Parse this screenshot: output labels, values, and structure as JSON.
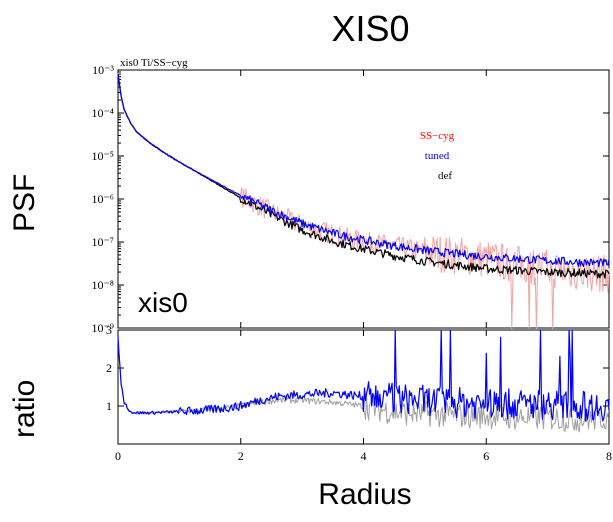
{
  "figure": {
    "title": "XIS0",
    "psf_ylabel": "PSF",
    "ratio_ylabel": "ratio",
    "xlabel": "Radius",
    "panel_title": "xis0 Ti/SS−cyg",
    "panel_annotation": "xis0"
  },
  "colors": {
    "sscyg": "#ff0000",
    "sscyg_line": "#f4a3a3",
    "tuned": "#0000ff",
    "def": "#000000",
    "def_ratio": "#a0a0a0"
  },
  "chart_data": [
    {
      "type": "line",
      "panel": "psf",
      "xlim": [
        0,
        8
      ],
      "ylim": [
        1e-09,
        0.001
      ],
      "yscale": "log",
      "xticks": [
        0,
        2,
        4,
        6,
        8
      ],
      "ytick_labels": [
        "10⁻⁹",
        "10⁻⁸",
        "10⁻⁷",
        "10⁻⁶",
        "10⁻⁵",
        "10⁻⁴",
        "10⁻³"
      ],
      "legend": [
        "SS−cyg",
        "tuned",
        "def"
      ],
      "legend_placement": "top-right",
      "series": [
        {
          "name": "def",
          "x": [
            0,
            0.05,
            0.1,
            0.2,
            0.3,
            0.5,
            0.75,
            1.0,
            1.5,
            2.0,
            2.5,
            3.0,
            3.5,
            4.0,
            4.5,
            5.0,
            5.5,
            6.0,
            6.5,
            7.0,
            7.5,
            8.0
          ],
          "y": [
            0.0008,
            0.00025,
            0.00012,
            6e-05,
            3.7e-05,
            2.1e-05,
            1.2e-05,
            7.2e-06,
            2.8e-06,
            1.05e-06,
            4.3e-07,
            1.9e-07,
            1.05e-07,
            6.8e-08,
            4.8e-08,
            3.6e-08,
            2.9e-08,
            2.4e-08,
            2.2e-08,
            2e-08,
            1.9e-08,
            1.8e-08
          ]
        },
        {
          "name": "tuned",
          "x": [
            0,
            0.05,
            0.1,
            0.2,
            0.3,
            0.5,
            0.75,
            1.0,
            1.5,
            2.0,
            2.5,
            3.0,
            3.5,
            4.0,
            4.5,
            5.0,
            5.5,
            6.0,
            6.5,
            7.0,
            7.5,
            8.0
          ],
          "y": [
            0.0008,
            0.00025,
            0.00012,
            6e-05,
            3.7e-05,
            2.1e-05,
            1.2e-05,
            7.2e-06,
            2.9e-06,
            1.2e-06,
            5.5e-07,
            2.7e-07,
            1.6e-07,
            1.1e-07,
            8.2e-08,
            6.4e-08,
            5.3e-08,
            4.6e-08,
            4.1e-08,
            3.7e-08,
            3.4e-08,
            3.2e-08
          ]
        },
        {
          "name": "SS−cyg",
          "x": [
            0,
            0.05,
            0.1,
            0.2,
            0.3,
            0.5,
            0.75,
            1.0,
            1.5,
            2.0,
            2.5,
            3.0,
            3.5,
            4.0,
            4.5,
            5.0,
            5.5,
            6.0,
            6.5,
            7.0,
            7.5,
            8.0
          ],
          "y": [
            0.0009,
            0.00026,
            0.00012,
            6e-05,
            3.7e-05,
            2.1e-05,
            1.2e-05,
            7.2e-06,
            2.9e-06,
            1.15e-06,
            5e-07,
            2.4e-07,
            1.5e-07,
            1e-07,
            8e-08,
            6e-08,
            5e-08,
            4e-08,
            3e-08,
            2.5e-08,
            2e-08,
            1.8e-08
          ]
        }
      ]
    },
    {
      "type": "line",
      "panel": "ratio",
      "xlim": [
        0,
        8
      ],
      "ylim": [
        0,
        3
      ],
      "xticks": [
        0,
        2,
        4,
        6,
        8
      ],
      "yticks": [
        1,
        2,
        3
      ],
      "series": [
        {
          "name": "def",
          "x": [
            0,
            0.05,
            0.1,
            0.2,
            0.3,
            0.5,
            1.0,
            1.5,
            2.0,
            2.3,
            2.6,
            3.0,
            3.5,
            4.0,
            4.5,
            5.0,
            5.5,
            6.0,
            6.5,
            7.0,
            7.5,
            8.0
          ],
          "y": [
            2.8,
            1.6,
            1.1,
            0.85,
            0.82,
            0.82,
            0.85,
            0.9,
            1.0,
            1.1,
            1.15,
            1.15,
            1.1,
            1.0,
            0.85,
            0.8,
            0.75,
            0.75,
            0.7,
            0.7,
            0.65,
            0.7
          ]
        },
        {
          "name": "tuned",
          "x": [
            0,
            0.05,
            0.1,
            0.2,
            0.3,
            0.5,
            1.0,
            1.5,
            2.0,
            2.3,
            2.6,
            3.0,
            3.5,
            4.0,
            4.5,
            5.0,
            5.5,
            6.0,
            6.5,
            7.0,
            7.5,
            8.0
          ],
          "y": [
            2.8,
            1.6,
            1.1,
            0.85,
            0.82,
            0.82,
            0.85,
            0.9,
            1.0,
            1.15,
            1.25,
            1.3,
            1.35,
            1.25,
            1.2,
            1.15,
            1.1,
            1.05,
            1.05,
            1.05,
            1.0,
            1.0
          ]
        }
      ]
    }
  ]
}
